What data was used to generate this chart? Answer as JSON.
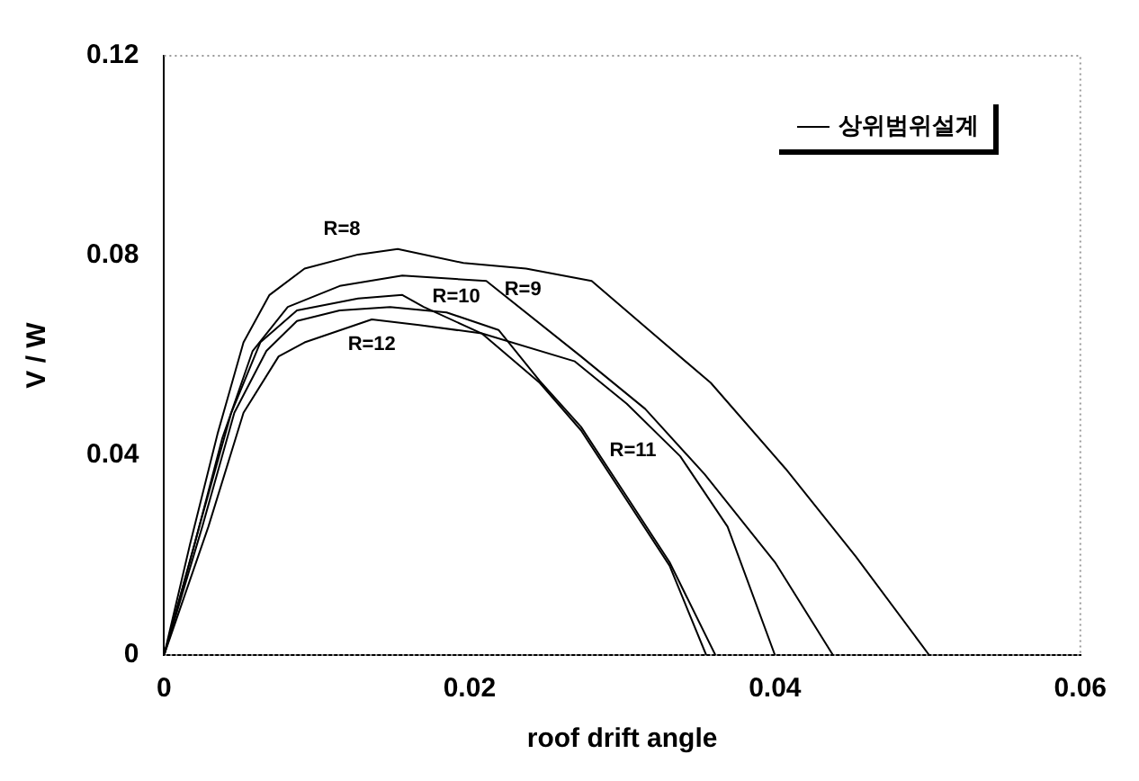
{
  "chart_data": {
    "type": "line",
    "xlabel": "roof drift angle",
    "ylabel": "V / W",
    "legend_title": "상위범위설계",
    "xlim": [
      0,
      0.06
    ],
    "xticks": [
      0,
      0.02,
      0.04,
      0.06
    ],
    "ylim": [
      0,
      0.12
    ],
    "yticks": [
      0,
      0.04,
      0.08,
      0.12
    ],
    "grid": false,
    "marker": "none",
    "line_style": "solid",
    "series": [
      {
        "name": "R=8",
        "color": "#000000",
        "x": [
          0,
          0.0017,
          0.0035,
          0.0052,
          0.0069,
          0.0092,
          0.0127,
          0.0153,
          0.0196,
          0.0237,
          0.028,
          0.032,
          0.0358,
          0.0407,
          0.0453,
          0.0501
        ],
        "values": [
          0,
          0.0222,
          0.0443,
          0.0626,
          0.0721,
          0.0774,
          0.0802,
          0.0813,
          0.0785,
          0.0774,
          0.0749,
          0.0644,
          0.0545,
          0.0373,
          0.0197,
          0
        ]
      },
      {
        "name": "R=9",
        "color": "#000000",
        "x": [
          0,
          0.002,
          0.0038,
          0.0058,
          0.0081,
          0.0115,
          0.0156,
          0.0211,
          0.0273,
          0.0315,
          0.0354,
          0.04,
          0.0438
        ],
        "values": [
          0,
          0.0222,
          0.0433,
          0.0609,
          0.0697,
          0.0739,
          0.076,
          0.0749,
          0.0598,
          0.0493,
          0.0362,
          0.0186,
          0
        ]
      },
      {
        "name": "R=10",
        "color": "#000000",
        "x": [
          0,
          0.0023,
          0.0044,
          0.0063,
          0.0087,
          0.0127,
          0.0156,
          0.017,
          0.0208,
          0.0269,
          0.0303,
          0.0338,
          0.0369,
          0.04
        ],
        "values": [
          0,
          0.0257,
          0.0485,
          0.0626,
          0.069,
          0.0714,
          0.0721,
          0.0697,
          0.0644,
          0.0588,
          0.0503,
          0.0398,
          0.0257,
          0
        ]
      },
      {
        "name": "R=11",
        "color": "#000000",
        "x": [
          0,
          0.0025,
          0.0046,
          0.0067,
          0.0087,
          0.0115,
          0.0148,
          0.0185,
          0.0219,
          0.0246,
          0.0273,
          0.0303,
          0.0331,
          0.0361
        ],
        "values": [
          0,
          0.0257,
          0.0485,
          0.0609,
          0.0669,
          0.069,
          0.0697,
          0.0686,
          0.0651,
          0.0549,
          0.0457,
          0.0317,
          0.0186,
          0
        ]
      },
      {
        "name": "R=12",
        "color": "#000000",
        "x": [
          0,
          0.0029,
          0.0052,
          0.0075,
          0.0092,
          0.0136,
          0.0167,
          0.0208,
          0.0246,
          0.0273,
          0.0303,
          0.0331,
          0.0355
        ],
        "values": [
          0,
          0.0257,
          0.0485,
          0.0598,
          0.0626,
          0.0672,
          0.0661,
          0.0644,
          0.0545,
          0.045,
          0.031,
          0.0179,
          0
        ]
      }
    ]
  }
}
